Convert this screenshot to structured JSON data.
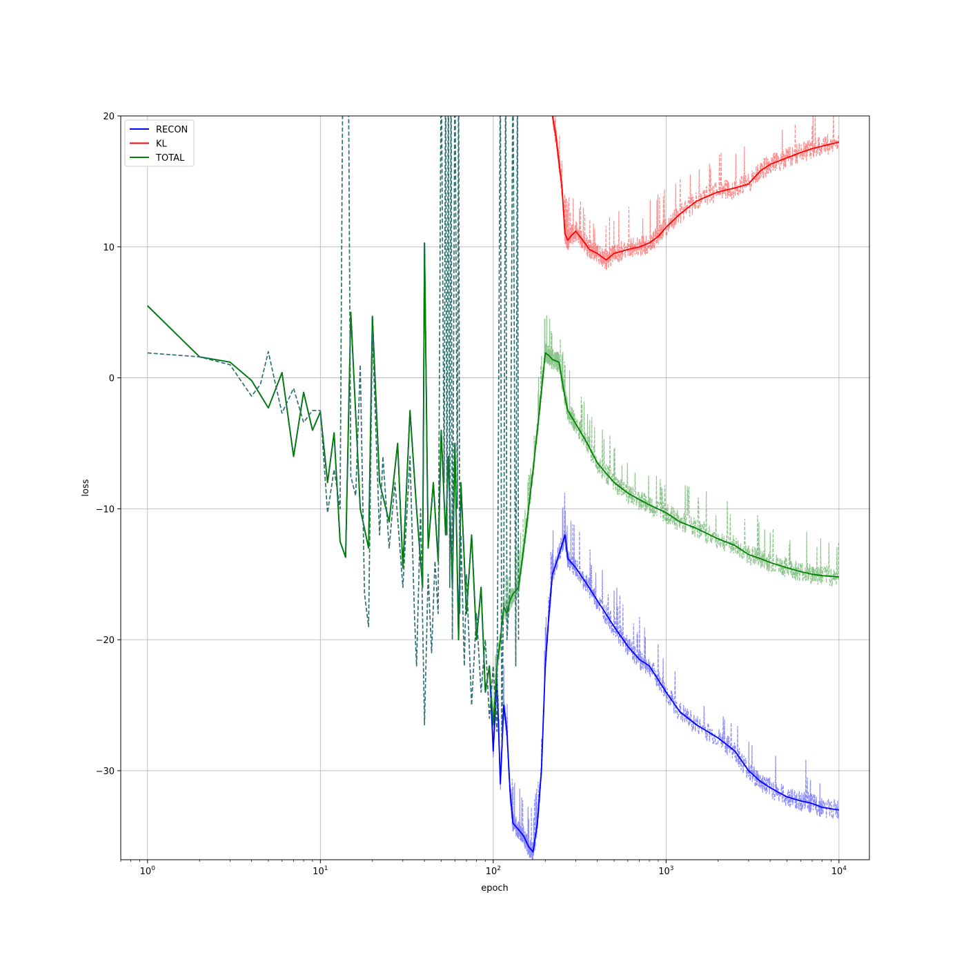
{
  "chart_data": {
    "type": "line",
    "title": "",
    "xlabel": "epoch",
    "ylabel": "loss",
    "xscale": "log",
    "xlim": [
      0.7,
      15000
    ],
    "ylim": [
      -36.8,
      20
    ],
    "grid": true,
    "legend_position": "top-left",
    "x_ticks": [
      {
        "value": 1,
        "base": "10",
        "exp": "0"
      },
      {
        "value": 10,
        "base": "10",
        "exp": "1"
      },
      {
        "value": 100,
        "base": "10",
        "exp": "2"
      },
      {
        "value": 1000,
        "base": "10",
        "exp": "3"
      },
      {
        "value": 10000,
        "base": "10",
        "exp": "4"
      }
    ],
    "y_ticks": [
      {
        "value": 20,
        "label": "20"
      },
      {
        "value": 10,
        "label": "10"
      },
      {
        "value": 0,
        "label": "0"
      },
      {
        "value": -10,
        "label": "−10"
      },
      {
        "value": -20,
        "label": "−20"
      },
      {
        "value": -30,
        "label": "−30"
      }
    ],
    "series": [
      {
        "name": "RECON",
        "color": "#0000ff",
        "style": "solid",
        "x": [
          1,
          2,
          3,
          4,
          5,
          6,
          7,
          8,
          9,
          10,
          11,
          12,
          13,
          14,
          15,
          17,
          19,
          20,
          22,
          25,
          28,
          30,
          33,
          36,
          39,
          40,
          42,
          45,
          48,
          50,
          53,
          55,
          58,
          60,
          63,
          65,
          68,
          70,
          75,
          80,
          85,
          90,
          95,
          100,
          105,
          110,
          115,
          120,
          125,
          130,
          140,
          150,
          160,
          170,
          180,
          190,
          200,
          210,
          220,
          240,
          260,
          270,
          300,
          350,
          400,
          500,
          600,
          700,
          800,
          1000,
          1200,
          1500,
          2000,
          2500,
          3000,
          3500,
          4000,
          5000,
          6000,
          7000,
          8000,
          10000
        ],
        "y": [
          5.5,
          1.6,
          1.2,
          -0.2,
          -2.3,
          0.4,
          -6.0,
          -1.1,
          -4.0,
          -2.6,
          -8.0,
          -4.2,
          -12.5,
          -13.7,
          5.0,
          -10.0,
          -13.0,
          4.7,
          -8.0,
          -11.0,
          -5.0,
          -14.5,
          -2.5,
          -10.0,
          -16.0,
          10.3,
          -13.0,
          -8.0,
          -14.0,
          -4.0,
          -12.0,
          -6.0,
          -16.0,
          -5.0,
          -20.0,
          -8.0,
          -14.0,
          -18.0,
          -12.0,
          -20.0,
          -16.0,
          -24.0,
          -22.0,
          -28.5,
          -23.0,
          -31.0,
          -25.0,
          -27.0,
          -31.5,
          -34.0,
          -34.5,
          -35.0,
          -35.8,
          -36.2,
          -34.0,
          -30.0,
          -22.0,
          -18.0,
          -15.0,
          -13.5,
          -12.0,
          -13.8,
          -14.5,
          -15.8,
          -17.0,
          -19.0,
          -20.5,
          -21.5,
          -22.0,
          -24.0,
          -25.5,
          -26.5,
          -27.5,
          -28.5,
          -30.0,
          -30.8,
          -31.3,
          -32.0,
          -32.3,
          -32.5,
          -32.8,
          -33.0
        ]
      },
      {
        "name": "KL",
        "color": "#ff0000",
        "style": "solid",
        "x": [
          220,
          230,
          240,
          250,
          260,
          270,
          280,
          300,
          330,
          360,
          400,
          450,
          500,
          600,
          700,
          800,
          900,
          1000,
          1200,
          1500,
          2000,
          2500,
          3000,
          3500,
          4000,
          5000,
          6000,
          7000,
          8000,
          10000
        ],
        "y": [
          20.0,
          18.5,
          16.5,
          14.5,
          11.0,
          10.5,
          10.8,
          11.2,
          10.5,
          9.8,
          9.5,
          9.0,
          9.5,
          9.8,
          10.0,
          10.3,
          10.8,
          11.5,
          12.5,
          13.5,
          14.2,
          14.5,
          14.8,
          15.8,
          16.3,
          16.8,
          17.2,
          17.5,
          17.7,
          18.0
        ]
      },
      {
        "name": "TOTAL",
        "color": "#008000",
        "style": "solid",
        "x": [
          1,
          2,
          3,
          4,
          5,
          6,
          7,
          8,
          9,
          10,
          11,
          12,
          13,
          14,
          15,
          17,
          19,
          20,
          22,
          25,
          28,
          30,
          33,
          36,
          39,
          40,
          42,
          45,
          48,
          50,
          53,
          55,
          58,
          60,
          63,
          65,
          68,
          70,
          75,
          80,
          85,
          90,
          95,
          100,
          105,
          110,
          115,
          120,
          125,
          130,
          140,
          150,
          160,
          170,
          180,
          190,
          200,
          210,
          220,
          240,
          260,
          270,
          300,
          350,
          400,
          500,
          600,
          700,
          800,
          1000,
          1200,
          1500,
          2000,
          2500,
          3000,
          3500,
          4000,
          5000,
          6000,
          7000,
          8000,
          10000
        ],
        "y": [
          5.5,
          1.6,
          1.2,
          -0.2,
          -2.3,
          0.4,
          -6.0,
          -1.1,
          -4.0,
          -2.6,
          -8.0,
          -4.2,
          -12.5,
          -13.7,
          5.0,
          -10.0,
          -13.0,
          4.7,
          -8.0,
          -11.0,
          -5.0,
          -14.5,
          -2.5,
          -10.0,
          -16.0,
          10.3,
          -13.0,
          -8.0,
          -14.0,
          -4.0,
          -12.0,
          -6.0,
          -16.0,
          -5.0,
          -20.0,
          -8.0,
          -14.0,
          -18.0,
          -12.0,
          -20.0,
          -16.0,
          -24.0,
          -22.0,
          -26.5,
          -22.0,
          -20.0,
          -17.5,
          -18.0,
          -17.0,
          -16.5,
          -16.0,
          -13.0,
          -10.0,
          -7.0,
          -4.0,
          -1.0,
          1.9,
          1.7,
          1.4,
          1.2,
          -1.5,
          -2.5,
          -3.5,
          -5.0,
          -6.5,
          -8.0,
          -8.8,
          -9.3,
          -9.7,
          -10.3,
          -11.0,
          -11.5,
          -12.3,
          -12.8,
          -13.5,
          -13.8,
          -14.1,
          -14.5,
          -14.8,
          -15.0,
          -15.1,
          -15.2
        ]
      },
      {
        "color": "#2f6f6f",
        "style": "dashed",
        "x": [
          1,
          2,
          3,
          4,
          4.5,
          5,
          5.5,
          6,
          7,
          8,
          9,
          10,
          11,
          12,
          13,
          13.5,
          14,
          14.5,
          15,
          16,
          17,
          18,
          19,
          20,
          22,
          23,
          25,
          27,
          30,
          33,
          35,
          36,
          38,
          40,
          42,
          44,
          46,
          48,
          50,
          52,
          53,
          54,
          55,
          56,
          57,
          58,
          60,
          62,
          63,
          64,
          65,
          68,
          70,
          75,
          80,
          85,
          90,
          95,
          100,
          105,
          110,
          112,
          115,
          118,
          120,
          125,
          130,
          135,
          138,
          140
        ],
        "y": [
          1.9,
          1.6,
          1.0,
          -1.4,
          -0.5,
          2.0,
          -0.5,
          -2.7,
          -0.8,
          -3.4,
          -2.5,
          -2.5,
          -10.3,
          -7.0,
          -10.0,
          25,
          25,
          25,
          -7.5,
          -9.0,
          1.0,
          -16.5,
          -19.0,
          3.5,
          -12.0,
          -6.0,
          -13.0,
          -8.0,
          -16.0,
          -6.0,
          -18.0,
          -22.0,
          -10.0,
          -26.5,
          -15.0,
          -21.0,
          -14.0,
          -18.0,
          25,
          -8.0,
          25,
          -12.0,
          25,
          -16.0,
          25,
          -20.0,
          25,
          -10.0,
          25,
          -18.0,
          -12.0,
          -22.0,
          -15.0,
          -25.0,
          -18.0,
          -24.0,
          -20.0,
          -26.0,
          -22.0,
          -27.0,
          25,
          -28.0,
          -15.0,
          25,
          -20.0,
          -16.0,
          25,
          -22.0,
          25,
          -20.0
        ]
      }
    ]
  }
}
